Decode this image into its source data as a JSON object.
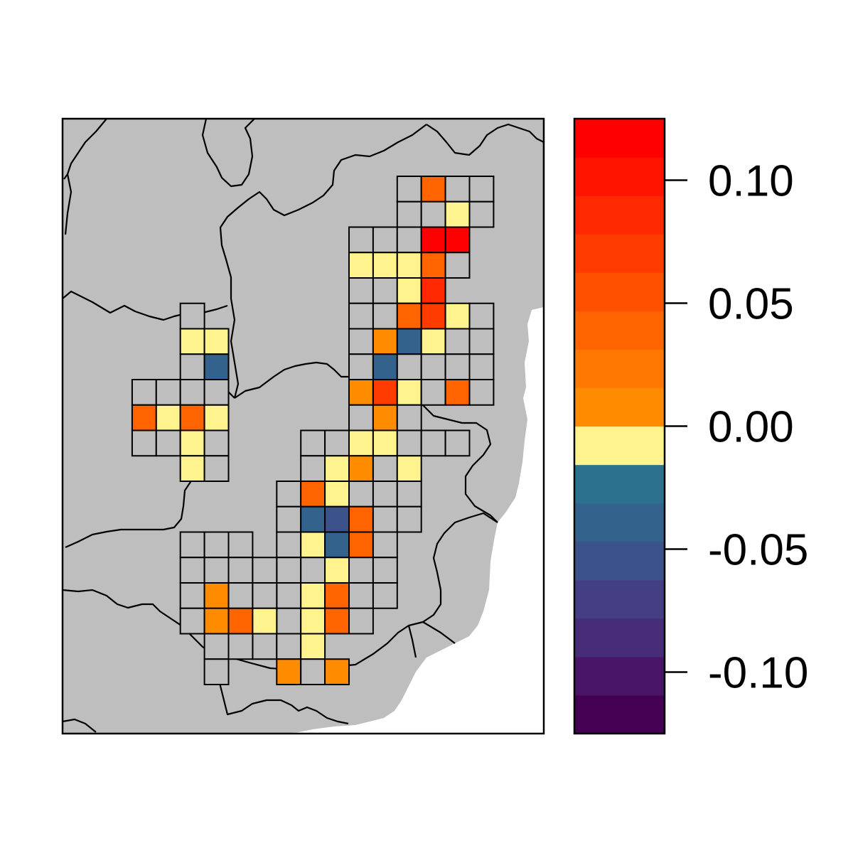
{
  "map": {
    "background_color": "#bebebe",
    "sea_color": "#ffffff",
    "border_color": "#000000",
    "empty_cell_color": "#bebebe",
    "grid_rows": 20,
    "grid_cols": 16,
    "cells": [
      {
        "r": 0,
        "c": 12,
        "v": null
      },
      {
        "r": 0,
        "c": 13,
        "v": 0.0375
      },
      {
        "r": 0,
        "c": 14,
        "v": null
      },
      {
        "r": 0,
        "c": 15,
        "v": null
      },
      {
        "r": 1,
        "c": 12,
        "v": null
      },
      {
        "r": 1,
        "c": 13,
        "v": null
      },
      {
        "r": 1,
        "c": 14,
        "v": -0.0125
      },
      {
        "r": 1,
        "c": 15,
        "v": null
      },
      {
        "r": 2,
        "c": 10,
        "v": null
      },
      {
        "r": 2,
        "c": 11,
        "v": null
      },
      {
        "r": 2,
        "c": 12,
        "v": null
      },
      {
        "r": 2,
        "c": 13,
        "v": 0.1125
      },
      {
        "r": 2,
        "c": 14,
        "v": 0.1125
      },
      {
        "r": 3,
        "c": 10,
        "v": -0.0125
      },
      {
        "r": 3,
        "c": 11,
        "v": -0.0125
      },
      {
        "r": 3,
        "c": 12,
        "v": -0.0125
      },
      {
        "r": 3,
        "c": 13,
        "v": 0.0375
      },
      {
        "r": 3,
        "c": 14,
        "v": null
      },
      {
        "r": 4,
        "c": 10,
        "v": null
      },
      {
        "r": 4,
        "c": 11,
        "v": null
      },
      {
        "r": 4,
        "c": 12,
        "v": -0.0125
      },
      {
        "r": 4,
        "c": 13,
        "v": 0.0875
      },
      {
        "r": 5,
        "c": 10,
        "v": null
      },
      {
        "r": 5,
        "c": 11,
        "v": null
      },
      {
        "r": 5,
        "c": 12,
        "v": 0.0375
      },
      {
        "r": 5,
        "c": 13,
        "v": 0.0625
      },
      {
        "r": 5,
        "c": 14,
        "v": -0.0125
      },
      {
        "r": 5,
        "c": 15,
        "v": null
      },
      {
        "r": 6,
        "c": 10,
        "v": null
      },
      {
        "r": 6,
        "c": 11,
        "v": 0.0125
      },
      {
        "r": 6,
        "c": 12,
        "v": -0.0375
      },
      {
        "r": 6,
        "c": 13,
        "v": -0.0125
      },
      {
        "r": 6,
        "c": 14,
        "v": null
      },
      {
        "r": 6,
        "c": 15,
        "v": null
      },
      {
        "r": 7,
        "c": 10,
        "v": null
      },
      {
        "r": 7,
        "c": 11,
        "v": -0.0375
      },
      {
        "r": 7,
        "c": 12,
        "v": null
      },
      {
        "r": 7,
        "c": 13,
        "v": null
      },
      {
        "r": 7,
        "c": 14,
        "v": null
      },
      {
        "r": 7,
        "c": 15,
        "v": null
      },
      {
        "r": 8,
        "c": 10,
        "v": 0.0125
      },
      {
        "r": 8,
        "c": 11,
        "v": 0.0625
      },
      {
        "r": 8,
        "c": 12,
        "v": -0.0125
      },
      {
        "r": 8,
        "c": 13,
        "v": null
      },
      {
        "r": 8,
        "c": 14,
        "v": 0.0375
      },
      {
        "r": 8,
        "c": 15,
        "v": null
      },
      {
        "r": 9,
        "c": 10,
        "v": null
      },
      {
        "r": 9,
        "c": 11,
        "v": 0.0125
      },
      {
        "r": 9,
        "c": 12,
        "v": null
      },
      {
        "r": 10,
        "c": 8,
        "v": null
      },
      {
        "r": 10,
        "c": 9,
        "v": null
      },
      {
        "r": 10,
        "c": 10,
        "v": -0.0125
      },
      {
        "r": 10,
        "c": 11,
        "v": -0.0125
      },
      {
        "r": 10,
        "c": 12,
        "v": null
      },
      {
        "r": 10,
        "c": 13,
        "v": null
      },
      {
        "r": 10,
        "c": 14,
        "v": null
      },
      {
        "r": 11,
        "c": 8,
        "v": null
      },
      {
        "r": 11,
        "c": 9,
        "v": -0.0125
      },
      {
        "r": 11,
        "c": 10,
        "v": 0.0125
      },
      {
        "r": 11,
        "c": 11,
        "v": null
      },
      {
        "r": 11,
        "c": 12,
        "v": -0.0125
      },
      {
        "r": 12,
        "c": 7,
        "v": null
      },
      {
        "r": 12,
        "c": 8,
        "v": 0.0375
      },
      {
        "r": 12,
        "c": 9,
        "v": -0.0125
      },
      {
        "r": 12,
        "c": 10,
        "v": null
      },
      {
        "r": 12,
        "c": 11,
        "v": null
      },
      {
        "r": 12,
        "c": 12,
        "v": null
      },
      {
        "r": 13,
        "c": 7,
        "v": null
      },
      {
        "r": 13,
        "c": 8,
        "v": -0.0375
      },
      {
        "r": 13,
        "c": 9,
        "v": -0.0625
      },
      {
        "r": 13,
        "c": 10,
        "v": 0.0375
      },
      {
        "r": 13,
        "c": 11,
        "v": null
      },
      {
        "r": 13,
        "c": 12,
        "v": null
      },
      {
        "r": 14,
        "c": 7,
        "v": null
      },
      {
        "r": 14,
        "c": 8,
        "v": -0.0125
      },
      {
        "r": 14,
        "c": 9,
        "v": -0.0375
      },
      {
        "r": 14,
        "c": 10,
        "v": 0.0375
      },
      {
        "r": 14,
        "c": 11,
        "v": null
      },
      {
        "r": 15,
        "c": 7,
        "v": null
      },
      {
        "r": 15,
        "c": 8,
        "v": null
      },
      {
        "r": 15,
        "c": 9,
        "v": -0.0125
      },
      {
        "r": 15,
        "c": 10,
        "v": null
      },
      {
        "r": 15,
        "c": 11,
        "v": null
      },
      {
        "r": 16,
        "c": 7,
        "v": null
      },
      {
        "r": 16,
        "c": 8,
        "v": -0.0125
      },
      {
        "r": 16,
        "c": 9,
        "v": 0.0375
      },
      {
        "r": 16,
        "c": 10,
        "v": null
      },
      {
        "r": 16,
        "c": 11,
        "v": null
      },
      {
        "r": 17,
        "c": 7,
        "v": null
      },
      {
        "r": 17,
        "c": 8,
        "v": -0.0125
      },
      {
        "r": 17,
        "c": 9,
        "v": 0.0375
      },
      {
        "r": 17,
        "c": 10,
        "v": null
      },
      {
        "r": 18,
        "c": 6,
        "v": null
      },
      {
        "r": 18,
        "c": 7,
        "v": null
      },
      {
        "r": 18,
        "c": 8,
        "v": -0.0125
      },
      {
        "r": 19,
        "c": 7,
        "v": 0.0125
      },
      {
        "r": 19,
        "c": 8,
        "v": null
      },
      {
        "r": 19,
        "c": 9,
        "v": 0.0125
      },
      {
        "r": 5,
        "c": 3,
        "v": null
      },
      {
        "r": 6,
        "c": 3,
        "v": -0.0125
      },
      {
        "r": 6,
        "c": 4,
        "v": -0.0125
      },
      {
        "r": 7,
        "c": 3,
        "v": null
      },
      {
        "r": 7,
        "c": 4,
        "v": -0.0375
      },
      {
        "r": 8,
        "c": 1,
        "v": null
      },
      {
        "r": 8,
        "c": 2,
        "v": null
      },
      {
        "r": 8,
        "c": 3,
        "v": null
      },
      {
        "r": 8,
        "c": 4,
        "v": null
      },
      {
        "r": 9,
        "c": 1,
        "v": 0.0375
      },
      {
        "r": 9,
        "c": 2,
        "v": -0.0125
      },
      {
        "r": 9,
        "c": 3,
        "v": 0.0375
      },
      {
        "r": 9,
        "c": 4,
        "v": -0.0125
      },
      {
        "r": 10,
        "c": 1,
        "v": null
      },
      {
        "r": 10,
        "c": 2,
        "v": null
      },
      {
        "r": 10,
        "c": 3,
        "v": -0.0125
      },
      {
        "r": 10,
        "c": 4,
        "v": null
      },
      {
        "r": 11,
        "c": 3,
        "v": -0.0125
      },
      {
        "r": 11,
        "c": 4,
        "v": null
      },
      {
        "r": 14,
        "c": 3,
        "v": null
      },
      {
        "r": 14,
        "c": 4,
        "v": null
      },
      {
        "r": 14,
        "c": 5,
        "v": null
      },
      {
        "r": 15,
        "c": 3,
        "v": null
      },
      {
        "r": 15,
        "c": 4,
        "v": null
      },
      {
        "r": 15,
        "c": 5,
        "v": null
      },
      {
        "r": 15,
        "c": 6,
        "v": null
      },
      {
        "r": 16,
        "c": 3,
        "v": null
      },
      {
        "r": 16,
        "c": 4,
        "v": 0.0125
      },
      {
        "r": 16,
        "c": 5,
        "v": null
      },
      {
        "r": 16,
        "c": 6,
        "v": null
      },
      {
        "r": 17,
        "c": 3,
        "v": null
      },
      {
        "r": 17,
        "c": 4,
        "v": 0.0125
      },
      {
        "r": 17,
        "c": 5,
        "v": 0.0375
      },
      {
        "r": 17,
        "c": 6,
        "v": -0.0125
      },
      {
        "r": 18,
        "c": 4,
        "v": null
      },
      {
        "r": 18,
        "c": 5,
        "v": null
      },
      {
        "r": 19,
        "c": 4,
        "v": null
      }
    ]
  },
  "legend": {
    "min": -0.125,
    "max": 0.125,
    "colors": [
      "#440154",
      "#481567",
      "#472c7a",
      "#443f84",
      "#3b528b",
      "#33638d",
      "#2c728e",
      "#fff38e",
      "#ff8c00",
      "#ff7800",
      "#ff6400",
      "#ff5000",
      "#ff3c00",
      "#ff2800",
      "#ff1400",
      "#ff0000"
    ],
    "ticks": [
      {
        "value": 0.1,
        "label": "0.10"
      },
      {
        "value": 0.05,
        "label": "0.05"
      },
      {
        "value": 0.0,
        "label": "0.00"
      },
      {
        "value": -0.05,
        "label": "-0.05"
      },
      {
        "value": -0.1,
        "label": "-0.10"
      }
    ]
  }
}
